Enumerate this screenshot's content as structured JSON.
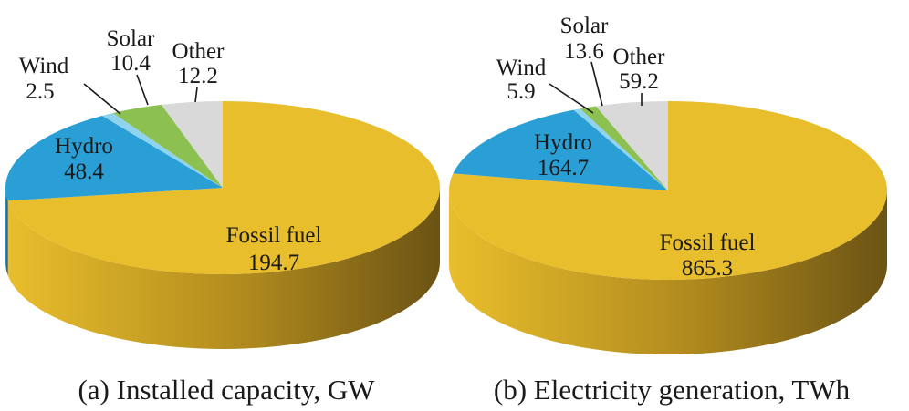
{
  "chart_data": [
    {
      "type": "pie",
      "title": "(a) Installed capacity, GW",
      "slices": [
        {
          "name": "Fossil fuel",
          "value": 194.7,
          "value_label": "194.7",
          "color": "#e9be2c",
          "side_color": "#b08a1e"
        },
        {
          "name": "Hydro",
          "value": 48.4,
          "value_label": "48.4",
          "color": "#2a9fd6",
          "side_color": "#1d6f96"
        },
        {
          "name": "Wind",
          "value": 2.5,
          "value_label": "2.5",
          "color": "#8fd3ee",
          "side_color": "#5d97ad"
        },
        {
          "name": "Solar",
          "value": 10.4,
          "value_label": "10.4",
          "color": "#8cc152",
          "side_color": "#5f8a35"
        },
        {
          "name": "Other",
          "value": 12.2,
          "value_label": "12.2",
          "color": "#d9d9d9",
          "side_color": "#a6a6a6"
        }
      ]
    },
    {
      "type": "pie",
      "title": "(b) Electricity generation, TWh",
      "slices": [
        {
          "name": "Fossil fuel",
          "value": 865.3,
          "value_label": "865.3",
          "color": "#e9be2c",
          "side_color": "#b08a1e"
        },
        {
          "name": "Hydro",
          "value": 164.7,
          "value_label": "164.7",
          "color": "#2a9fd6",
          "side_color": "#1d6f96"
        },
        {
          "name": "Wind",
          "value": 5.9,
          "value_label": "5.9",
          "color": "#8fd3ee",
          "side_color": "#5d97ad"
        },
        {
          "name": "Solar",
          "value": 13.6,
          "value_label": "13.6",
          "color": "#8cc152",
          "side_color": "#5f8a35"
        },
        {
          "name": "Other",
          "value": 59.2,
          "value_label": "59.2",
          "color": "#d9d9d9",
          "side_color": "#a6a6a6"
        }
      ]
    }
  ]
}
